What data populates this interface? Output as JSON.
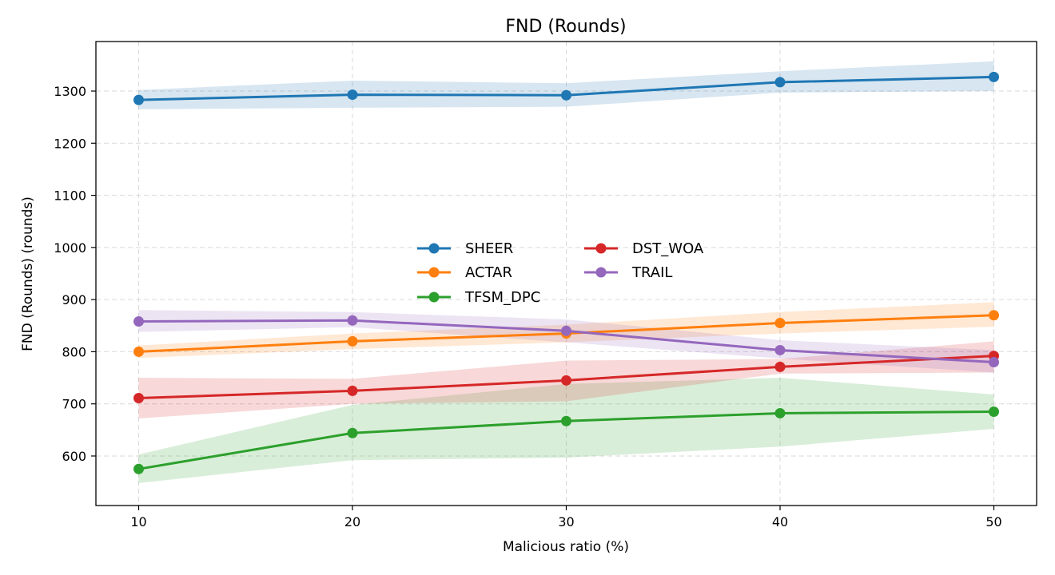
{
  "chart_data": {
    "type": "line",
    "title": "FND (Rounds)",
    "xlabel": "Malicious ratio (%)",
    "ylabel": "FND (Rounds) (rounds)",
    "x": [
      10,
      20,
      30,
      40,
      50
    ],
    "xticks": [
      10,
      20,
      30,
      40,
      50
    ],
    "yticks": [
      600,
      700,
      800,
      900,
      1000,
      1100,
      1200,
      1300
    ],
    "xlim": [
      8,
      52
    ],
    "ylim": [
      505,
      1395
    ],
    "grid": true,
    "legend_position": "center",
    "series": [
      {
        "name": "SHEER",
        "color": "#1f77b4",
        "values": [
          1283,
          1293,
          1292,
          1317,
          1327
        ],
        "lower": [
          1265,
          1268,
          1270,
          1297,
          1300
        ],
        "upper": [
          1302,
          1320,
          1315,
          1338,
          1357
        ]
      },
      {
        "name": "ACTAR",
        "color": "#ff7f0e",
        "values": [
          800,
          820,
          835,
          855,
          870
        ],
        "lower": [
          788,
          805,
          818,
          835,
          848
        ],
        "upper": [
          812,
          835,
          852,
          876,
          895
        ]
      },
      {
        "name": "TFSM_DPC",
        "color": "#2ca02c",
        "values": [
          575,
          644,
          667,
          682,
          685
        ],
        "lower": [
          548,
          592,
          597,
          618,
          652
        ],
        "upper": [
          603,
          698,
          738,
          750,
          718
        ]
      },
      {
        "name": "DST_WOA",
        "color": "#d62728",
        "values": [
          711,
          725,
          745,
          771,
          792
        ],
        "lower": [
          672,
          700,
          705,
          758,
          760
        ],
        "upper": [
          750,
          748,
          783,
          786,
          820
        ]
      },
      {
        "name": "TRAIL",
        "color": "#9467bd",
        "values": [
          858,
          860,
          840,
          803,
          780
        ],
        "lower": [
          838,
          847,
          818,
          787,
          760
        ],
        "upper": [
          880,
          876,
          862,
          822,
          803
        ]
      }
    ]
  }
}
